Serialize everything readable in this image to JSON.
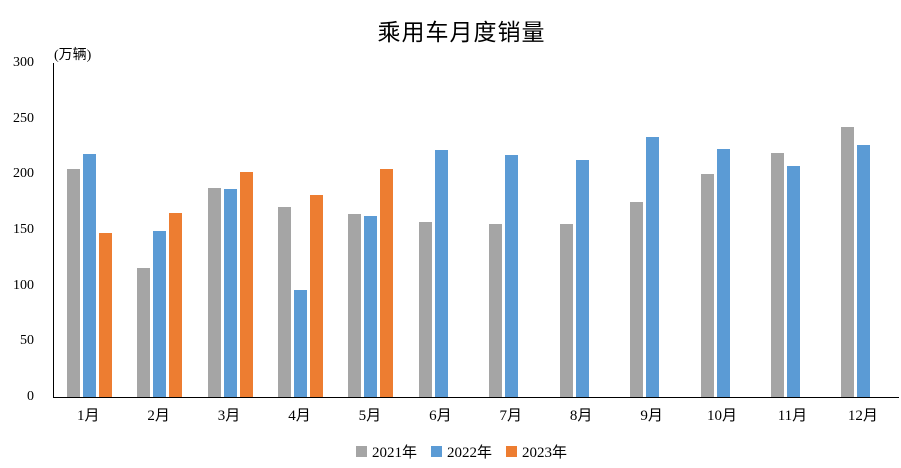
{
  "title": "乘用车月度销量",
  "unit_label": "(万辆)",
  "legend": [
    {
      "label": "2021年",
      "color": "#a5a5a5"
    },
    {
      "label": "2022年",
      "color": "#5b9bd5"
    },
    {
      "label": "2023年",
      "color": "#ed7d31"
    }
  ],
  "chart_data": {
    "type": "bar",
    "title": "乘用车月度销量",
    "ylabel": "(万辆)",
    "categories": [
      "1月",
      "2月",
      "3月",
      "4月",
      "5月",
      "6月",
      "7月",
      "8月",
      "9月",
      "10月",
      "11月",
      "12月"
    ],
    "series": [
      {
        "name": "2021年",
        "color": "#a5a5a5",
        "values": [
          204.5,
          115.6,
          187.4,
          170.4,
          164.6,
          156.9,
          155.1,
          155.2,
          175.1,
          200.7,
          219.2,
          242.2
        ]
      },
      {
        "name": "2022年",
        "color": "#5b9bd5",
        "values": [
          218.6,
          148.7,
          186.4,
          96.5,
          162.3,
          222.2,
          217.4,
          212.5,
          233.2,
          223.1,
          207.5,
          226.3
        ]
      },
      {
        "name": "2023年",
        "color": "#ed7d31",
        "values": [
          146.9,
          165.3,
          201.7,
          181.1,
          205.1,
          null,
          null,
          null,
          null,
          null,
          null,
          null
        ]
      }
    ],
    "ylim": [
      0,
      300
    ],
    "y_ticks": [
      0,
      50,
      100,
      150,
      200,
      250,
      300
    ],
    "grid": false,
    "legend_position": "bottom",
    "axis_color": "#000000",
    "background": "#ffffff"
  }
}
